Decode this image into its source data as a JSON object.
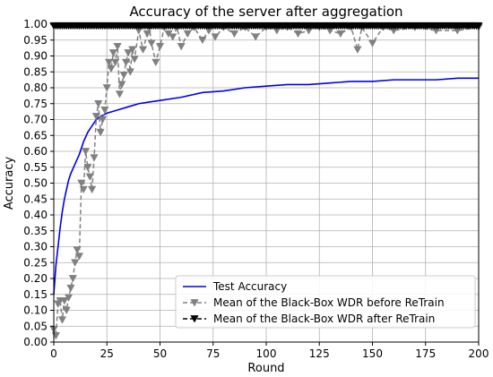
{
  "chart_data": {
    "type": "line",
    "title": "Accuracy of the server after aggregation",
    "xlabel": "Round",
    "ylabel": "Accuracy",
    "xlim": [
      0,
      200
    ],
    "ylim": [
      0,
      1.0
    ],
    "xticks": [
      0,
      25,
      50,
      75,
      100,
      125,
      150,
      175,
      200
    ],
    "yticks": [
      0.0,
      0.05,
      0.1,
      0.15,
      0.2,
      0.25,
      0.3,
      0.35,
      0.4,
      0.45,
      0.5,
      0.55,
      0.6,
      0.65,
      0.7,
      0.75,
      0.8,
      0.85,
      0.9,
      0.95,
      1.0
    ],
    "grid": true,
    "legend_position": "lower right",
    "series": [
      {
        "name": "Test Accuracy",
        "color": "#0000ee",
        "style": "solid",
        "marker": "none",
        "x": [
          0,
          1,
          2,
          3,
          4,
          5,
          6,
          7,
          8,
          10,
          12,
          14,
          16,
          18,
          20,
          22,
          25,
          30,
          35,
          40,
          45,
          50,
          60,
          70,
          80,
          90,
          100,
          110,
          120,
          130,
          140,
          150,
          160,
          170,
          180,
          190,
          200
        ],
        "y": [
          0.15,
          0.24,
          0.3,
          0.36,
          0.41,
          0.45,
          0.48,
          0.51,
          0.53,
          0.56,
          0.59,
          0.63,
          0.66,
          0.68,
          0.7,
          0.71,
          0.72,
          0.73,
          0.74,
          0.75,
          0.755,
          0.76,
          0.77,
          0.785,
          0.79,
          0.8,
          0.805,
          0.81,
          0.81,
          0.815,
          0.82,
          0.82,
          0.825,
          0.825,
          0.825,
          0.83,
          0.83
        ]
      },
      {
        "name": "Mean of the Black-Box WDR before ReTrain",
        "color": "#808080",
        "style": "dashed",
        "marker": "triangle-down",
        "x": [
          0,
          1,
          2,
          3,
          4,
          5,
          6,
          7,
          8,
          9,
          10,
          11,
          12,
          13,
          14,
          15,
          16,
          17,
          18,
          19,
          20,
          21,
          22,
          23,
          24,
          25,
          26,
          27,
          28,
          29,
          30,
          31,
          32,
          33,
          34,
          35,
          36,
          37,
          38,
          40,
          42,
          44,
          45,
          46,
          48,
          50,
          52,
          54,
          56,
          58,
          60,
          63,
          66,
          70,
          73,
          76,
          80,
          85,
          90,
          95,
          100,
          105,
          110,
          115,
          120,
          125,
          130,
          135,
          140,
          143,
          145,
          150,
          155,
          160,
          170,
          180,
          190,
          200
        ],
        "y": [
          0.04,
          0.02,
          0.12,
          0.13,
          0.07,
          0.13,
          0.1,
          0.14,
          0.17,
          0.2,
          0.25,
          0.29,
          0.27,
          0.5,
          0.48,
          0.6,
          0.55,
          0.52,
          0.48,
          0.58,
          0.71,
          0.75,
          0.66,
          0.7,
          0.73,
          0.8,
          0.88,
          0.86,
          0.91,
          0.88,
          0.93,
          0.78,
          0.81,
          0.84,
          0.88,
          0.91,
          0.85,
          0.92,
          0.89,
          0.98,
          0.92,
          0.97,
          0.99,
          0.94,
          0.88,
          0.93,
          0.99,
          0.97,
          0.96,
          0.99,
          0.93,
          0.97,
          0.99,
          0.95,
          0.98,
          0.96,
          0.99,
          0.97,
          0.99,
          0.96,
          0.99,
          0.98,
          0.99,
          0.97,
          0.98,
          0.99,
          0.98,
          0.97,
          0.99,
          0.92,
          0.99,
          0.94,
          0.99,
          0.98,
          0.99,
          0.98,
          0.98,
          0.99
        ]
      },
      {
        "name": "Mean of the Black-Box WDR after ReTrain",
        "color": "#000000",
        "style": "dashed",
        "marker": "triangle-down",
        "x": [
          0,
          200
        ],
        "y": [
          0.995,
          0.995
        ]
      }
    ]
  }
}
